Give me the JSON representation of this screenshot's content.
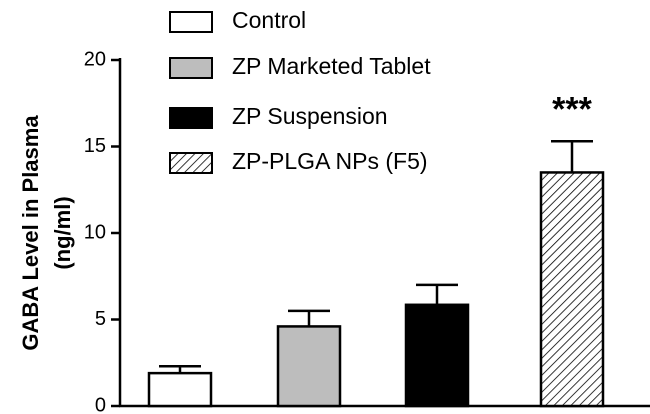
{
  "chart_data": {
    "type": "bar",
    "ylabel": [
      "GABA Level in Plasma",
      "(ng/ml)"
    ],
    "categories": [
      "Control",
      "ZP Marketed Tablet",
      "ZP Suspension",
      "ZP-PLGA NPs (F5)"
    ],
    "values": [
      1.9,
      4.6,
      5.85,
      13.5
    ],
    "errors": [
      0.4,
      0.9,
      1.15,
      1.8
    ],
    "fills": [
      "#ffffff",
      "#bdbdbd",
      "#000000",
      "hatch"
    ],
    "annotation": "***",
    "ylim": [
      0,
      20
    ],
    "yticks": [
      0,
      5,
      10,
      15,
      20
    ],
    "grid": false
  }
}
